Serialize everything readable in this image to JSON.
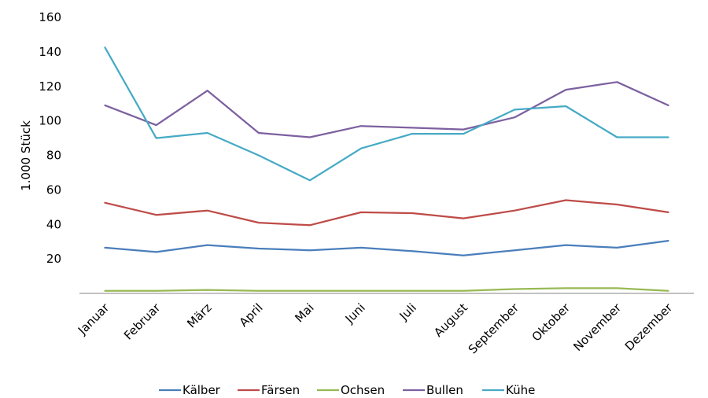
{
  "chart_data": {
    "type": "line",
    "title": "",
    "xlabel": "",
    "ylabel": "1.000 Stück",
    "ylim": [
      0,
      160
    ],
    "yticks": [
      20,
      40,
      60,
      80,
      100,
      120,
      140,
      160
    ],
    "grid": false,
    "legend_position": "bottom",
    "categories": [
      "Januar",
      "Februar",
      "März",
      "April",
      "Mai",
      "Juni",
      "Juli",
      "August",
      "September",
      "Oktober",
      "November",
      "Dezember"
    ],
    "series": [
      {
        "name": "Kälber",
        "color": "#4a7ebb",
        "values": [
          26.5,
          24,
          28,
          26,
          25,
          26.5,
          24.5,
          22,
          25,
          28,
          26.5,
          30.5
        ]
      },
      {
        "name": "Färsen",
        "color": "#be4b48",
        "values": [
          52.5,
          45.5,
          48,
          41,
          39.5,
          47,
          46.5,
          43.5,
          48,
          54,
          51.5,
          47
        ]
      },
      {
        "name": "Ochsen",
        "color": "#98b954",
        "values": [
          1.5,
          1.5,
          2,
          1.5,
          1.5,
          1.5,
          1.5,
          1.5,
          2.5,
          3,
          3,
          1.5
        ]
      },
      {
        "name": "Bullen",
        "color": "#7d60a0",
        "values": [
          109,
          97.5,
          117.5,
          93,
          90.5,
          97,
          96,
          95,
          102,
          118,
          122.5,
          109
        ]
      },
      {
        "name": "Kühe",
        "color": "#46aac5",
        "values": [
          142.5,
          90,
          93,
          80,
          65.5,
          84,
          92.5,
          92.5,
          106.5,
          108.5,
          90.5,
          90.5
        ]
      }
    ]
  }
}
